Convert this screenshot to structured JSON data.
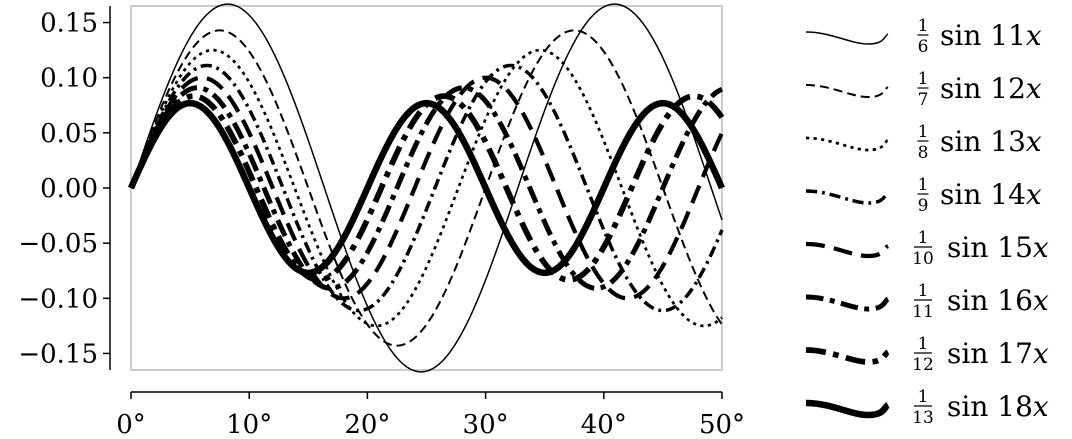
{
  "chart_data": {
    "type": "line",
    "title": "",
    "xlabel": "",
    "ylabel": "",
    "xlim": [
      0,
      50
    ],
    "ylim": [
      -0.165,
      0.165
    ],
    "grid": false,
    "legend_position": "right",
    "x_unit": "°",
    "x_ticks": [
      0,
      10,
      20,
      30,
      40,
      50
    ],
    "x_tick_labels": [
      "0°",
      "10°",
      "20°",
      "30°",
      "40°",
      "50°"
    ],
    "y_ticks": [
      0.15,
      0.1,
      0.05,
      0.0,
      -0.05,
      -0.1,
      -0.15
    ],
    "y_tick_labels": [
      "0.15",
      "0.10",
      "0.05",
      "0.00",
      "−0.05",
      "−0.10",
      "−0.15"
    ],
    "series": [
      {
        "name": "1/6 sin 11x",
        "numerator": "1",
        "denominator": "6",
        "func_label": "sin 11",
        "var_label": "x",
        "amplitude": 0.1667,
        "frequency": 11,
        "dash": "solid",
        "weight": 1.5
      },
      {
        "name": "1/7 sin 12x",
        "numerator": "1",
        "denominator": "7",
        "func_label": "sin 12",
        "var_label": "x",
        "amplitude": 0.1429,
        "frequency": 12,
        "dash": "dashed",
        "weight": 2.0
      },
      {
        "name": "1/8 sin 13x",
        "numerator": "1",
        "denominator": "8",
        "func_label": "sin 13",
        "var_label": "x",
        "amplitude": 0.125,
        "frequency": 13,
        "dash": "dotted",
        "weight": 2.7
      },
      {
        "name": "1/9 sin 14x",
        "numerator": "1",
        "denominator": "9",
        "func_label": "sin 14",
        "var_label": "x",
        "amplitude": 0.1111,
        "frequency": 14,
        "dash": "dashdot",
        "weight": 3.5
      },
      {
        "name": "1/10 sin 15x",
        "numerator": "1",
        "denominator": "10",
        "func_label": "sin 15",
        "var_label": "x",
        "amplitude": 0.1,
        "frequency": 15,
        "dash": "long-dashed",
        "weight": 4.2
      },
      {
        "name": "1/11 sin 16x",
        "numerator": "1",
        "denominator": "11",
        "func_label": "sin 16",
        "var_label": "x",
        "amplitude": 0.0909,
        "frequency": 16,
        "dash": "long-dashdot",
        "weight": 5.0
      },
      {
        "name": "1/12 sin 17x",
        "numerator": "1",
        "denominator": "12",
        "func_label": "sin 17",
        "var_label": "x",
        "amplitude": 0.0833,
        "frequency": 17,
        "dash": "long-dashdot",
        "weight": 5.7
      },
      {
        "name": "1/13 sin 18x",
        "numerator": "1",
        "denominator": "13",
        "func_label": "sin 18",
        "var_label": "x",
        "amplitude": 0.0769,
        "frequency": 18,
        "dash": "solid",
        "weight": 6.5
      }
    ]
  }
}
